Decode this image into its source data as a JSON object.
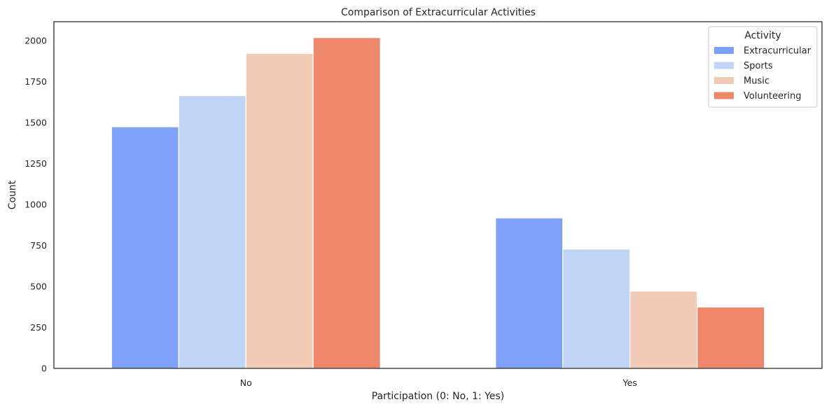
{
  "chart_data": {
    "type": "bar",
    "title": "Comparison of Extracurricular Activities",
    "xlabel": "Participation (0: No, 1: Yes)",
    "ylabel": "Count",
    "categories": [
      "No",
      "Yes"
    ],
    "ylim": [
      0,
      2115
    ],
    "yticks": [
      0,
      250,
      500,
      750,
      1000,
      1250,
      1500,
      1750,
      2000
    ],
    "grid": false,
    "legend": {
      "title": "Activity",
      "placement": "top-right"
    },
    "series": [
      {
        "name": "Extracurricular",
        "color": "#7ea1f9",
        "values": [
          1474,
          918
        ]
      },
      {
        "name": "Sports",
        "color": "#c0d4f5",
        "values": [
          1664,
          728
        ]
      },
      {
        "name": "Music",
        "color": "#f1cbb6",
        "values": [
          1921,
          471
        ]
      },
      {
        "name": "Volunteering",
        "color": "#ee8669",
        "values": [
          2018,
          374
        ]
      }
    ]
  }
}
